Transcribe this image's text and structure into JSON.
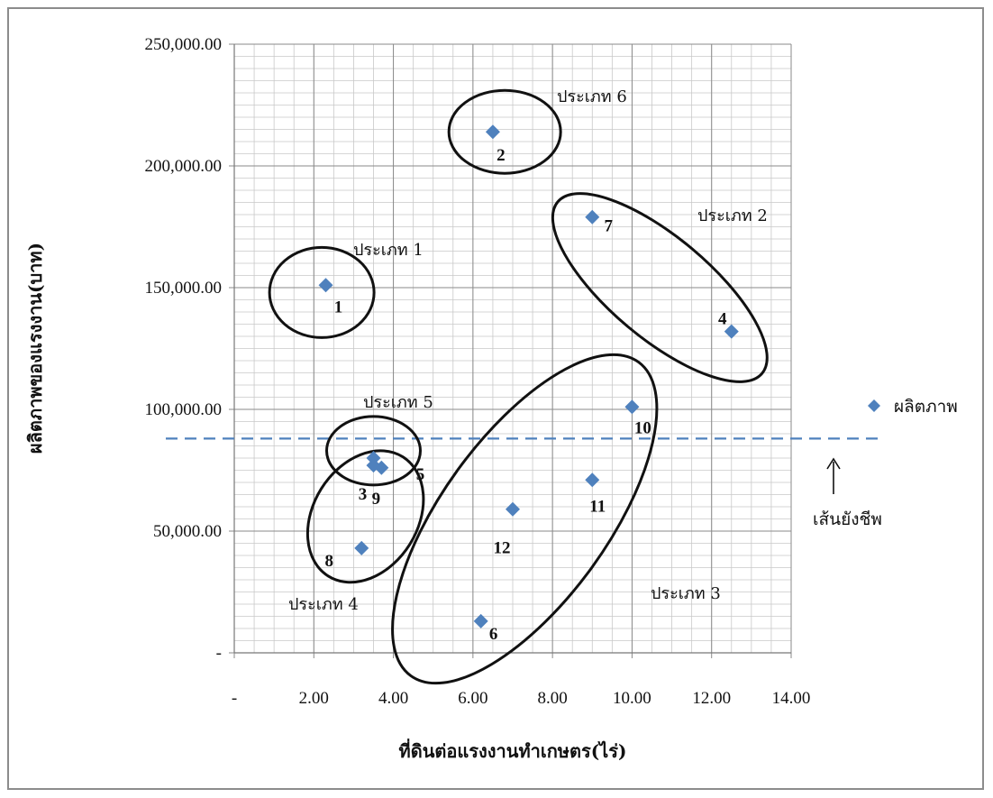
{
  "chart_data": {
    "type": "scatter",
    "title": "",
    "xlabel": "ที่ดินต่อแรงงานทำเกษตร(ไร่)",
    "ylabel": "ผลิตภาพของแรงงาน(บาท)",
    "xlim": [
      0,
      14
    ],
    "ylim": [
      0,
      250000
    ],
    "x_ticks": [
      "-",
      "2.00",
      "4.00",
      "6.00",
      "8.00",
      "10.00",
      "12.00",
      "14.00"
    ],
    "y_ticks": [
      "-",
      "50,000.00",
      "100,000.00",
      "150,000.00",
      "200,000.00",
      "250,000.00"
    ],
    "grid": "major and minor",
    "legend_position": "right",
    "series": [
      {
        "name": "ผลิตภาพ",
        "color": "#4f81bd",
        "marker": "diamond",
        "points": [
          {
            "label": "1",
            "x": 2.3,
            "y": 151000
          },
          {
            "label": "2",
            "x": 6.5,
            "y": 214000
          },
          {
            "label": "3",
            "x": 3.5,
            "y": 77000
          },
          {
            "label": "4",
            "x": 12.5,
            "y": 132000
          },
          {
            "label": "5",
            "x": 3.5,
            "y": 80000
          },
          {
            "label": "6",
            "x": 6.2,
            "y": 13000
          },
          {
            "label": "7",
            "x": 9.0,
            "y": 179000
          },
          {
            "label": "8",
            "x": 3.2,
            "y": 43000
          },
          {
            "label": "9",
            "x": 3.7,
            "y": 76000
          },
          {
            "label": "10",
            "x": 10.0,
            "y": 101000
          },
          {
            "label": "11",
            "x": 9.0,
            "y": 71000
          },
          {
            "label": "12",
            "x": 7.0,
            "y": 59000
          }
        ]
      }
    ],
    "reference_line": {
      "y": 88000,
      "style": "dashed",
      "color": "#4f81bd",
      "label": "เส้นยังชีพ"
    },
    "groups": [
      {
        "label": "ประเภท 1",
        "members": [
          "1"
        ]
      },
      {
        "label": "ประเภท 2",
        "members": [
          "7",
          "4"
        ]
      },
      {
        "label": "ประเภท 3",
        "members": [
          "10",
          "11",
          "12",
          "6"
        ]
      },
      {
        "label": "ประเภท 4",
        "members": [
          "8"
        ]
      },
      {
        "label": "ประเภท 5",
        "members": [
          "3",
          "5",
          "9"
        ]
      },
      {
        "label": "ประเภท 6",
        "members": [
          "2"
        ]
      }
    ]
  }
}
